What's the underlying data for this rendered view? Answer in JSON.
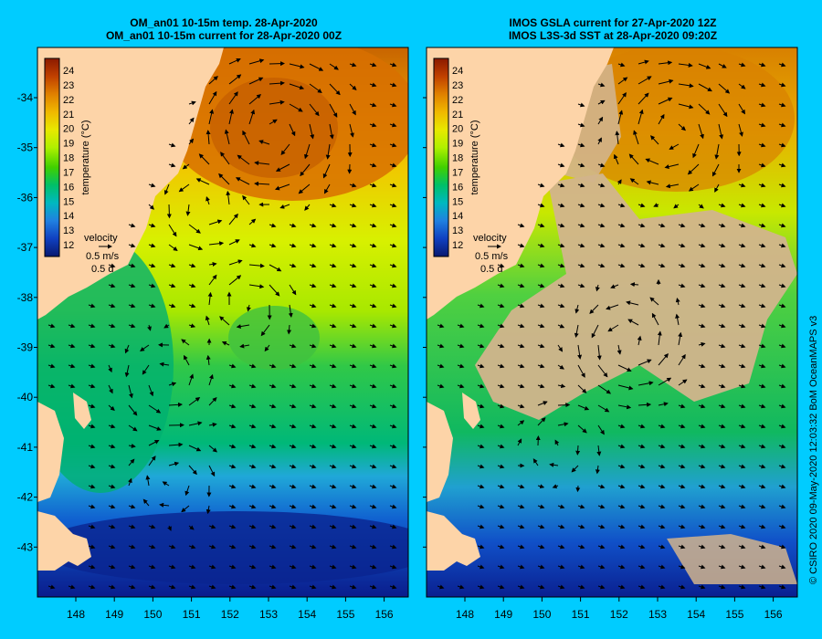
{
  "credit": "© CSIRO 2020  09-May-2020 12:03:32 BoM OceanMAPS v3",
  "panels": [
    {
      "id": "left",
      "title_line1": "OM_an01 10-15m temp. 28-Apr-2020",
      "title_line2": "OM_an01 10-15m current for 28-Apr-2020 00Z"
    },
    {
      "id": "right",
      "title_line1": "IMOS GSLA current for 27-Apr-2020 12Z",
      "title_line2": "IMOS L3S-3d SST at 28-Apr-2020 09:20Z"
    }
  ],
  "lat_labels": [
    "-34",
    "-35",
    "-36",
    "-37",
    "-38",
    "-39",
    "-40",
    "-41",
    "-42",
    "-43"
  ],
  "lon_labels": [
    "148",
    "149",
    "150",
    "151",
    "152",
    "153",
    "154",
    "155",
    "156"
  ],
  "colorbar": {
    "ticks": [
      "24",
      "23",
      "22",
      "21",
      "20",
      "19",
      "18",
      "17",
      "16",
      "15",
      "14",
      "13",
      "12"
    ],
    "label": "temperature (°C)",
    "colors": [
      "#8b1a00",
      "#b33a00",
      "#d96a00",
      "#f0a000",
      "#f5d000",
      "#d8f000",
      "#a0e800",
      "#40d000",
      "#00c060",
      "#00b8b0",
      "#2080e0",
      "#1040c0",
      "#081880"
    ]
  },
  "velocity_key": {
    "title": "velocity",
    "speed": "0.5 m/s",
    "duration": "0.5 d"
  },
  "palette": {
    "land": "#fdd4a8",
    "cloud": "#d2b48c",
    "background": "#00ccff"
  }
}
